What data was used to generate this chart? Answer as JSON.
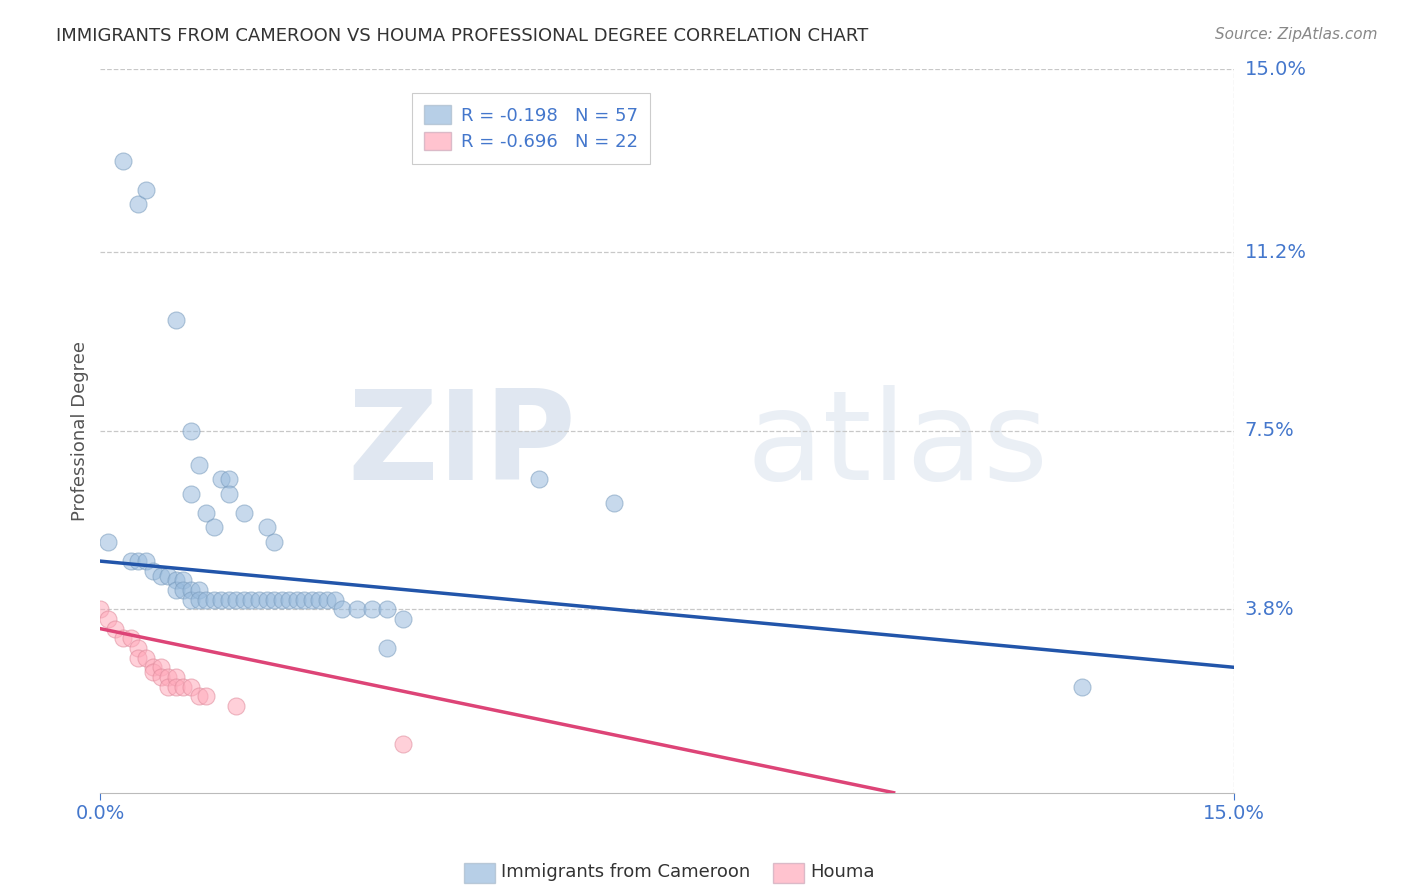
{
  "title": "IMMIGRANTS FROM CAMEROON VS HOUMA PROFESSIONAL DEGREE CORRELATION CHART",
  "source_text": "Source: ZipAtlas.com",
  "ylabel": "Professional Degree",
  "xlim": [
    0.0,
    0.15
  ],
  "ylim": [
    0.0,
    0.15
  ],
  "ytick_labels": [
    "3.8%",
    "7.5%",
    "11.2%",
    "15.0%"
  ],
  "ytick_values": [
    0.038,
    0.075,
    0.112,
    0.15
  ],
  "grid_color": "#c8c8c8",
  "background_color": "#ffffff",
  "watermark_zip": "ZIP",
  "watermark_atlas": "atlas",
  "legend_blue_label": "Immigrants from Cameroon",
  "legend_pink_label": "Houma",
  "legend_r_blue": "R = -0.198",
  "legend_n_blue": "N = 57",
  "legend_r_pink": "R = -0.696",
  "legend_n_pink": "N = 22",
  "blue_color": "#99bbdd",
  "pink_color": "#ffaabb",
  "blue_line_color": "#2255aa",
  "pink_line_color": "#dd4477",
  "title_color": "#333333",
  "source_color": "#888888",
  "axis_label_color": "#4477cc",
  "ylabel_color": "#555555",
  "blue_scatter": [
    [
      0.003,
      0.131
    ],
    [
      0.005,
      0.122
    ],
    [
      0.006,
      0.125
    ],
    [
      0.01,
      0.098
    ],
    [
      0.012,
      0.075
    ],
    [
      0.013,
      0.068
    ],
    [
      0.012,
      0.062
    ],
    [
      0.014,
      0.058
    ],
    [
      0.015,
      0.055
    ],
    [
      0.016,
      0.065
    ],
    [
      0.017,
      0.065
    ],
    [
      0.017,
      0.062
    ],
    [
      0.019,
      0.058
    ],
    [
      0.022,
      0.055
    ],
    [
      0.023,
      0.052
    ],
    [
      0.001,
      0.052
    ],
    [
      0.004,
      0.048
    ],
    [
      0.005,
      0.048
    ],
    [
      0.006,
      0.048
    ],
    [
      0.007,
      0.046
    ],
    [
      0.008,
      0.045
    ],
    [
      0.009,
      0.045
    ],
    [
      0.01,
      0.044
    ],
    [
      0.01,
      0.042
    ],
    [
      0.011,
      0.044
    ],
    [
      0.011,
      0.042
    ],
    [
      0.012,
      0.042
    ],
    [
      0.012,
      0.04
    ],
    [
      0.013,
      0.042
    ],
    [
      0.013,
      0.04
    ],
    [
      0.014,
      0.04
    ],
    [
      0.015,
      0.04
    ],
    [
      0.016,
      0.04
    ],
    [
      0.017,
      0.04
    ],
    [
      0.018,
      0.04
    ],
    [
      0.019,
      0.04
    ],
    [
      0.02,
      0.04
    ],
    [
      0.021,
      0.04
    ],
    [
      0.022,
      0.04
    ],
    [
      0.023,
      0.04
    ],
    [
      0.024,
      0.04
    ],
    [
      0.025,
      0.04
    ],
    [
      0.026,
      0.04
    ],
    [
      0.027,
      0.04
    ],
    [
      0.028,
      0.04
    ],
    [
      0.029,
      0.04
    ],
    [
      0.03,
      0.04
    ],
    [
      0.031,
      0.04
    ],
    [
      0.032,
      0.038
    ],
    [
      0.034,
      0.038
    ],
    [
      0.036,
      0.038
    ],
    [
      0.038,
      0.038
    ],
    [
      0.04,
      0.036
    ],
    [
      0.058,
      0.065
    ],
    [
      0.068,
      0.06
    ],
    [
      0.038,
      0.03
    ],
    [
      0.13,
      0.022
    ]
  ],
  "pink_scatter": [
    [
      0.0,
      0.038
    ],
    [
      0.001,
      0.036
    ],
    [
      0.002,
      0.034
    ],
    [
      0.003,
      0.032
    ],
    [
      0.004,
      0.032
    ],
    [
      0.005,
      0.03
    ],
    [
      0.005,
      0.028
    ],
    [
      0.006,
      0.028
    ],
    [
      0.007,
      0.026
    ],
    [
      0.007,
      0.025
    ],
    [
      0.008,
      0.026
    ],
    [
      0.008,
      0.024
    ],
    [
      0.009,
      0.024
    ],
    [
      0.009,
      0.022
    ],
    [
      0.01,
      0.024
    ],
    [
      0.01,
      0.022
    ],
    [
      0.011,
      0.022
    ],
    [
      0.012,
      0.022
    ],
    [
      0.013,
      0.02
    ],
    [
      0.014,
      0.02
    ],
    [
      0.018,
      0.018
    ],
    [
      0.04,
      0.01
    ]
  ],
  "blue_trendline_x": [
    0.0,
    0.15
  ],
  "blue_trendline_y": [
    0.048,
    0.026
  ],
  "pink_trendline_x": [
    0.0,
    0.105
  ],
  "pink_trendline_y": [
    0.034,
    0.0
  ]
}
